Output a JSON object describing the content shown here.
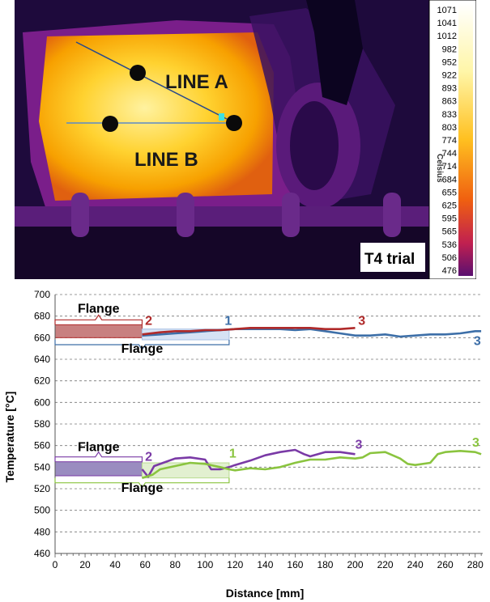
{
  "thermal": {
    "labels": {
      "line_a": "LINE A",
      "line_b": "LINE B",
      "trial": "T4 trial"
    },
    "scale_unit": "Celsius",
    "scale_ticks": [
      "1071",
      "1041",
      "1012",
      "982",
      "952",
      "922",
      "893",
      "863",
      "833",
      "803",
      "774",
      "744",
      "714",
      "684",
      "655",
      "625",
      "595",
      "565",
      "536",
      "506",
      "476"
    ]
  },
  "chart_data": {
    "type": "line",
    "xlabel": "Distance [mm]",
    "ylabel": "Temperature [°C]",
    "xlim": [
      0,
      285
    ],
    "ylim": [
      460,
      700
    ],
    "xticks": [
      0,
      20,
      40,
      60,
      80,
      100,
      120,
      140,
      160,
      180,
      200,
      220,
      240,
      260,
      280
    ],
    "yticks": [
      460,
      480,
      500,
      520,
      540,
      560,
      580,
      600,
      620,
      640,
      660,
      680,
      700
    ],
    "grid": "horizontal dashed",
    "colors": {
      "blue": "#3d6fa8",
      "red": "#b02a2a",
      "purple": "#7a3aa6",
      "green": "#8ac43f"
    },
    "series": [
      {
        "color": "blue",
        "x": [
          58,
          70,
          80,
          90,
          100,
          110,
          120,
          130,
          140,
          150,
          160,
          170,
          180,
          190,
          200,
          210,
          220,
          230,
          240,
          250,
          260,
          270,
          280,
          284
        ],
        "y": [
          662,
          663,
          664,
          665,
          666,
          667,
          668,
          668,
          668,
          668,
          667,
          668,
          666,
          664,
          662,
          662,
          663,
          661,
          662,
          663,
          663,
          664,
          666,
          666
        ]
      },
      {
        "color": "red",
        "x": [
          58,
          70,
          80,
          90,
          100,
          110,
          120,
          130,
          140,
          150,
          160,
          170,
          180,
          190,
          200
        ],
        "y": [
          663,
          665,
          666,
          666,
          667,
          667,
          668,
          669,
          669,
          669,
          669,
          669,
          668,
          668,
          669
        ]
      },
      {
        "color": "purple",
        "x": [
          58,
          62,
          66,
          72,
          80,
          90,
          100,
          104,
          110,
          116,
          120,
          130,
          140,
          150,
          160,
          166,
          170,
          180,
          190,
          200
        ],
        "y": [
          538,
          531,
          541,
          544,
          548,
          549,
          547,
          538,
          538,
          540,
          542,
          546,
          551,
          554,
          556,
          552,
          550,
          554,
          554,
          552
        ]
      },
      {
        "color": "green",
        "x": [
          58,
          65,
          70,
          80,
          90,
          100,
          110,
          116,
          120,
          130,
          140,
          150,
          160,
          170,
          180,
          190,
          200,
          205,
          210,
          220,
          230,
          235,
          240,
          250,
          255,
          260,
          270,
          280,
          284
        ],
        "y": [
          530,
          533,
          538,
          541,
          544,
          543,
          540,
          538,
          537,
          539,
          538,
          540,
          544,
          547,
          547,
          549,
          548,
          549,
          553,
          554,
          548,
          543,
          542,
          544,
          552,
          554,
          555,
          554,
          552
        ]
      }
    ],
    "annotations": {
      "flange_labels": [
        "Flange",
        "Flange",
        "Flange",
        "Flange"
      ],
      "point_labels": [
        "1",
        "2",
        "3",
        "3",
        "1",
        "2",
        "3",
        "3"
      ]
    }
  }
}
